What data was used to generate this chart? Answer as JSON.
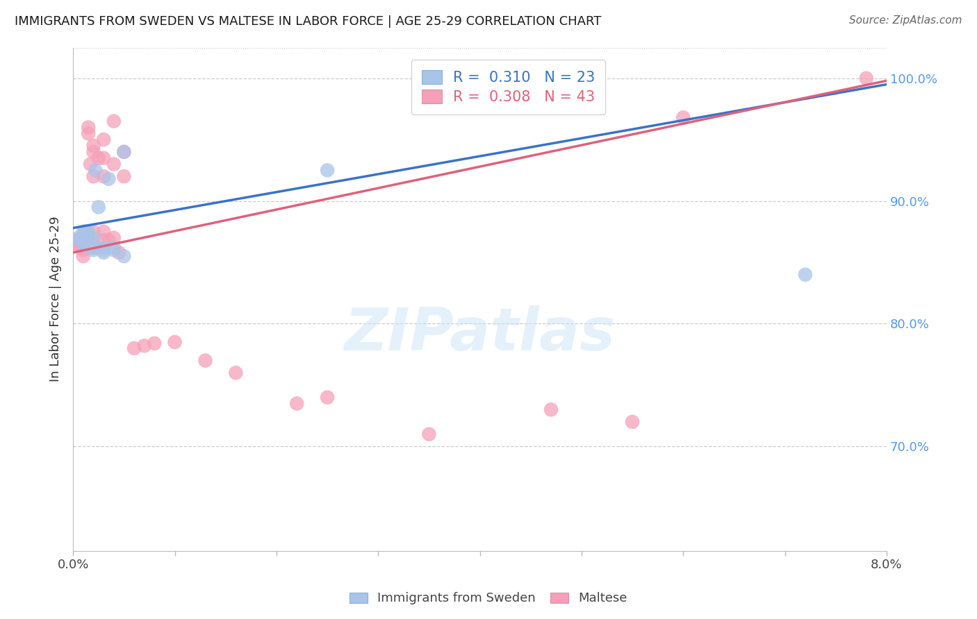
{
  "title": "IMMIGRANTS FROM SWEDEN VS MALTESE IN LABOR FORCE | AGE 25-29 CORRELATION CHART",
  "source": "Source: ZipAtlas.com",
  "ylabel": "In Labor Force | Age 25-29",
  "watermark": "ZIPatlas",
  "legend_sweden": "R =  0.310   N = 23",
  "legend_maltese": "R =  0.308   N = 43",
  "xlim": [
    0.0,
    0.08
  ],
  "ylim": [
    0.615,
    1.025
  ],
  "yticks": [
    0.7,
    0.8,
    0.9,
    1.0
  ],
  "ytick_labels": [
    "70.0%",
    "80.0%",
    "90.0%",
    "100.0%"
  ],
  "xticks": [
    0.0,
    0.01,
    0.02,
    0.03,
    0.04,
    0.05,
    0.06,
    0.07,
    0.08
  ],
  "xtick_labels": [
    "0.0%",
    "",
    "",
    "",
    "",
    "",
    "",
    "",
    "8.0%"
  ],
  "sweden_color": "#aac4e8",
  "maltese_color": "#f5a0b8",
  "sweden_line_color": "#3a72c8",
  "maltese_line_color": "#e0607a",
  "right_ytick_color": "#5599ee",
  "sweden_x": [
    0.0005,
    0.0007,
    0.001,
    0.001,
    0.0012,
    0.0015,
    0.0015,
    0.0017,
    0.002,
    0.002,
    0.002,
    0.0022,
    0.0025,
    0.003,
    0.003,
    0.003,
    0.0035,
    0.004,
    0.004,
    0.005,
    0.005,
    0.025,
    0.072
  ],
  "sweden_y": [
    0.87,
    0.868,
    0.875,
    0.865,
    0.875,
    0.875,
    0.868,
    0.862,
    0.87,
    0.862,
    0.86,
    0.925,
    0.895,
    0.862,
    0.86,
    0.858,
    0.918,
    0.862,
    0.86,
    0.94,
    0.855,
    0.925,
    0.84
  ],
  "maltese_x": [
    0.0003,
    0.0005,
    0.0007,
    0.001,
    0.001,
    0.001,
    0.001,
    0.0012,
    0.0015,
    0.0015,
    0.0017,
    0.002,
    0.002,
    0.002,
    0.002,
    0.002,
    0.0022,
    0.0025,
    0.003,
    0.003,
    0.003,
    0.003,
    0.003,
    0.0035,
    0.004,
    0.004,
    0.004,
    0.0045,
    0.005,
    0.005,
    0.006,
    0.007,
    0.008,
    0.01,
    0.013,
    0.016,
    0.022,
    0.025,
    0.035,
    0.047,
    0.055,
    0.06,
    0.078
  ],
  "maltese_y": [
    0.868,
    0.865,
    0.862,
    0.87,
    0.865,
    0.86,
    0.855,
    0.875,
    0.96,
    0.955,
    0.93,
    0.945,
    0.94,
    0.92,
    0.875,
    0.865,
    0.862,
    0.935,
    0.95,
    0.935,
    0.92,
    0.875,
    0.868,
    0.868,
    0.965,
    0.93,
    0.87,
    0.858,
    0.94,
    0.92,
    0.78,
    0.782,
    0.784,
    0.785,
    0.77,
    0.76,
    0.735,
    0.74,
    0.71,
    0.73,
    0.72,
    0.968,
    1.0
  ],
  "sweden_line_x": [
    0.0,
    0.08
  ],
  "sweden_line_y": [
    0.878,
    0.995
  ],
  "maltese_line_x": [
    0.0,
    0.08
  ],
  "maltese_line_y": [
    0.858,
    0.998
  ]
}
